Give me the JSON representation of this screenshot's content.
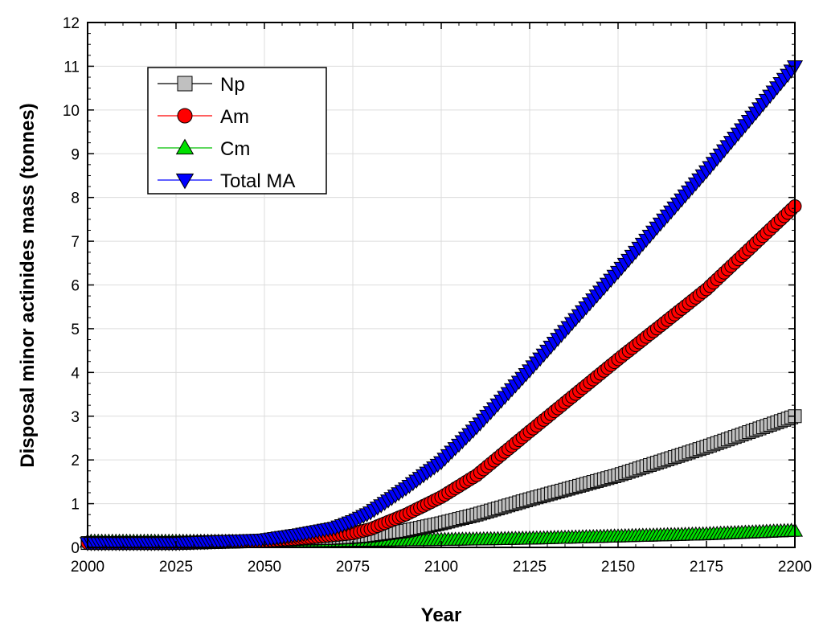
{
  "chart_data": {
    "type": "line",
    "xlabel": "Year",
    "ylabel": "Disposal minor actinides mass (tonnes)",
    "xlim": [
      2000,
      2200
    ],
    "ylim": [
      0,
      12
    ],
    "xticks": [
      "2000",
      "2025",
      "2050",
      "2075",
      "2100",
      "2125",
      "2150",
      "2175",
      "2200"
    ],
    "yticks": [
      "0",
      "1",
      "2",
      "3",
      "4",
      "5",
      "6",
      "7",
      "8",
      "9",
      "10",
      "11",
      "12"
    ],
    "grid": true,
    "legend_position": "top-left",
    "series": [
      {
        "name": "Np",
        "marker": "square",
        "color": "#c0c0c0",
        "line_color": "#000000",
        "x": [
          2000,
          2025,
          2050,
          2060,
          2070,
          2075,
          2080,
          2090,
          2100,
          2110,
          2125,
          2150,
          2175,
          2200
        ],
        "y": [
          0.1,
          0.1,
          0.15,
          0.2,
          0.22,
          0.24,
          0.27,
          0.38,
          0.55,
          0.75,
          1.1,
          1.65,
          2.3,
          3.0
        ]
      },
      {
        "name": "Am",
        "marker": "circle",
        "color": "#ff0000",
        "line_color": "#ff0000",
        "x": [
          2000,
          2025,
          2050,
          2060,
          2070,
          2075,
          2080,
          2090,
          2100,
          2110,
          2125,
          2150,
          2175,
          2200
        ],
        "y": [
          0.1,
          0.1,
          0.15,
          0.2,
          0.28,
          0.32,
          0.42,
          0.75,
          1.15,
          1.65,
          2.65,
          4.3,
          5.9,
          7.8
        ]
      },
      {
        "name": "Cm",
        "marker": "triangle-up",
        "color": "#00e000",
        "line_color": "#00c000",
        "x": [
          2000,
          2025,
          2050,
          2075,
          2100,
          2125,
          2150,
          2175,
          2200
        ],
        "y": [
          0.13,
          0.13,
          0.13,
          0.15,
          0.17,
          0.2,
          0.25,
          0.3,
          0.38
        ]
      },
      {
        "name": "Total MA",
        "marker": "triangle-down",
        "color": "#0000ff",
        "line_color": "#0000ff",
        "x": [
          2000,
          2025,
          2050,
          2060,
          2070,
          2075,
          2080,
          2090,
          2100,
          2110,
          2125,
          2150,
          2175,
          2200
        ],
        "y": [
          0.1,
          0.1,
          0.18,
          0.3,
          0.45,
          0.6,
          0.8,
          1.35,
          1.95,
          2.75,
          4.05,
          6.3,
          8.6,
          11.0
        ]
      }
    ]
  }
}
